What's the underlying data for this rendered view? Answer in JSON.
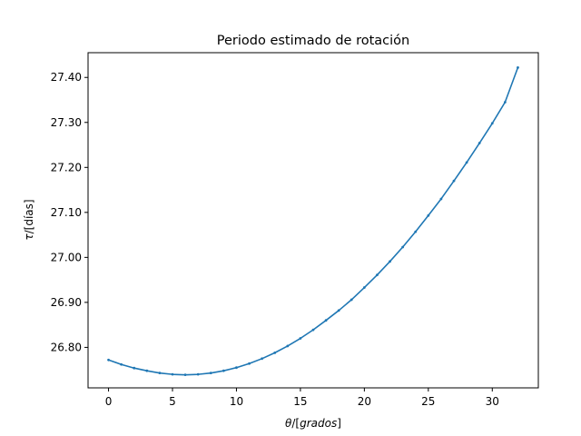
{
  "chart_data": {
    "type": "line",
    "title": "Periodo estimado de rotación",
    "xlabel_var": "θ",
    "xlabel_unit": "grados",
    "ylabel_var": "τ",
    "ylabel_unit": "días",
    "xlim": [
      -1.6,
      33.6
    ],
    "ylim": [
      26.71,
      27.455
    ],
    "x_ticks": [
      0,
      5,
      10,
      15,
      20,
      25,
      30
    ],
    "x_tick_labels": [
      "0",
      "5",
      "10",
      "15",
      "20",
      "25",
      "30"
    ],
    "y_ticks": [
      26.8,
      26.9,
      27.0,
      27.1,
      27.2,
      27.3,
      27.4
    ],
    "y_tick_labels": [
      "26.80",
      "26.90",
      "27.00",
      "27.10",
      "27.20",
      "27.30",
      "27.40"
    ],
    "grid": false,
    "series": [
      {
        "color": "#1f77b4",
        "marker": "dot",
        "x": [
          0.0,
          1.0,
          2.0,
          3.0,
          4.0,
          5.0,
          6.0,
          7.0,
          8.0,
          9.0,
          10.0,
          11.0,
          12.0,
          13.0,
          14.0,
          15.0,
          16.0,
          17.0,
          18.0,
          19.0,
          20.0,
          21.0,
          22.0,
          23.0,
          24.0,
          25.0,
          26.0,
          27.0,
          28.0,
          29.0,
          30.0,
          31.0,
          32.0
        ],
        "y": [
          26.772,
          26.762,
          26.754,
          26.748,
          26.743,
          26.74,
          26.739,
          26.74,
          26.743,
          26.748,
          26.755,
          26.764,
          26.775,
          26.788,
          26.803,
          26.82,
          26.839,
          26.86,
          26.882,
          26.906,
          26.933,
          26.961,
          26.991,
          27.023,
          27.057,
          27.093,
          27.13,
          27.17,
          27.211,
          27.254,
          27.298,
          27.345,
          27.422
        ]
      }
    ]
  }
}
